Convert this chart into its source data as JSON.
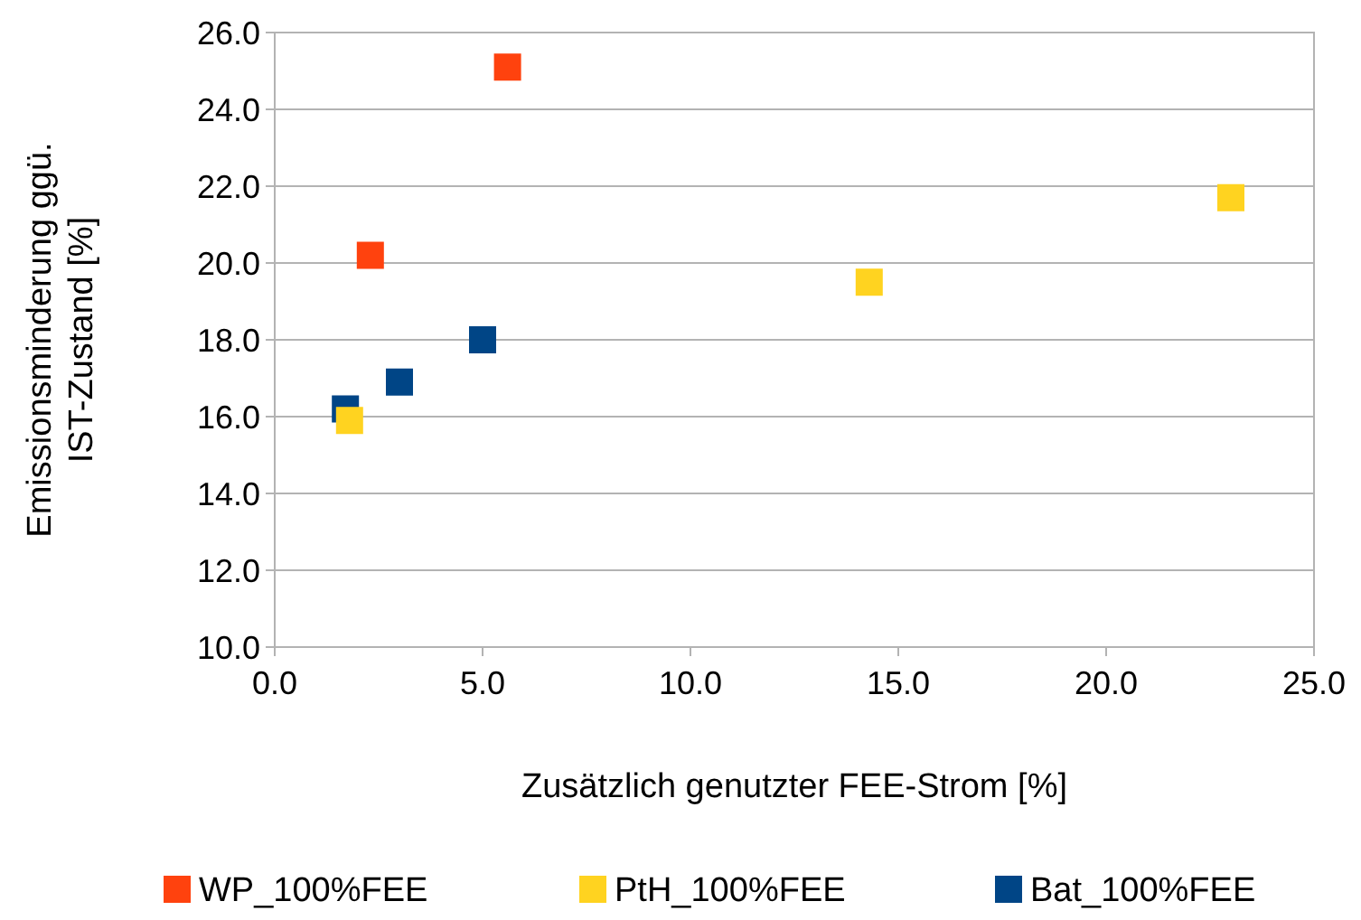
{
  "chart_data": {
    "type": "scatter",
    "xlabel": "Zusätzlich genutzter FEE-Strom [%]",
    "ylabel": "Emissionsminderung ggü. IST-Zustand [%]",
    "xlim": [
      0,
      25
    ],
    "xticks": [
      {
        "value": 0,
        "label": "0.0"
      },
      {
        "value": 5,
        "label": "5.0"
      },
      {
        "value": 10,
        "label": "10.0"
      },
      {
        "value": 15,
        "label": "15.0"
      },
      {
        "value": 20,
        "label": "20.0"
      },
      {
        "value": 25,
        "label": "25.0"
      }
    ],
    "ylim": [
      10,
      26
    ],
    "yticks": [
      {
        "value": 10,
        "label": "10.0"
      },
      {
        "value": 12,
        "label": "12.0"
      },
      {
        "value": 14,
        "label": "14.0"
      },
      {
        "value": 16,
        "label": "16.0"
      },
      {
        "value": 18,
        "label": "18.0"
      },
      {
        "value": 20,
        "label": "20.0"
      },
      {
        "value": 22,
        "label": "22.0"
      },
      {
        "value": 24,
        "label": "24.0"
      },
      {
        "value": 26,
        "label": "26.0"
      }
    ],
    "grid": "y",
    "legend": "bottom",
    "marker": "square",
    "series": [
      {
        "name": "WP_100%FEE",
        "color": "#ff420e",
        "x": [
          5.6,
          2.3
        ],
        "values": [
          25.1,
          20.2
        ]
      },
      {
        "name": "PtH_100%FEE",
        "color": "#ffd320",
        "x": [
          1.8,
          14.3,
          23.0
        ],
        "values": [
          15.9,
          19.5,
          21.7
        ]
      },
      {
        "name": "Bat_100%FEE",
        "color": "#004586",
        "x": [
          1.7,
          3.0,
          5.0
        ],
        "values": [
          16.2,
          16.9,
          18.0
        ]
      }
    ]
  }
}
